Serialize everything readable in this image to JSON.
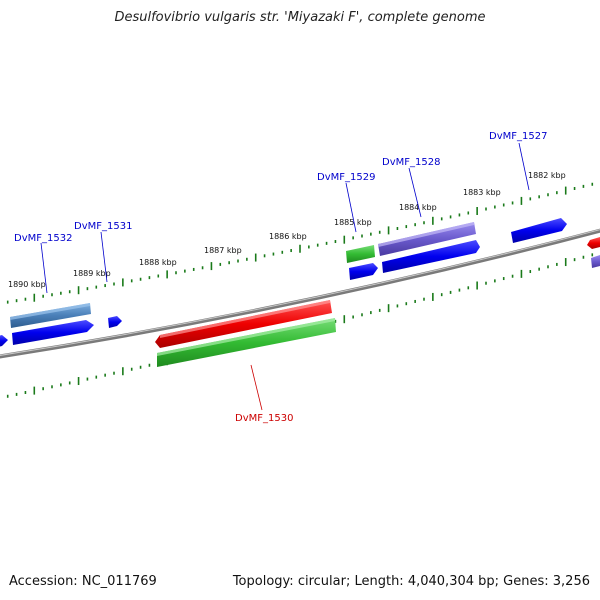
{
  "title": "Desulfovibrio vulgaris str. 'Miyazaki F', complete genome",
  "footer": {
    "accession_label": "Accession:",
    "accession": "NC_011769",
    "topology_label": "Topology:",
    "topology": "circular",
    "length_label": "Length:",
    "length": "4,040,304 bp",
    "genes_label": "Genes:",
    "genes": "3,256"
  },
  "scale_ticks": [
    "1882 kbp",
    "1883 kbp",
    "1884 kbp",
    "1885 kbp",
    "1886 kbp",
    "1887 kbp",
    "1888 kbp",
    "1889 kbp",
    "1890 kbp"
  ],
  "gene_labels": [
    "DvMF_1527",
    "DvMF_1528",
    "DvMF_1529",
    "DvMF_1530",
    "DvMF_1531",
    "DvMF_1532"
  ],
  "colors": {
    "backbone": "#7a7a7a",
    "tick": "#1a7a1a",
    "label_blue": "#0000cc",
    "label_red": "#cc0000",
    "gene_blue": "#0000ee",
    "gene_red": "#ee0000",
    "gene_green": "#33bb33",
    "gene_purple": "#6a5acd",
    "gene_steel": "#4a7fb8"
  }
}
